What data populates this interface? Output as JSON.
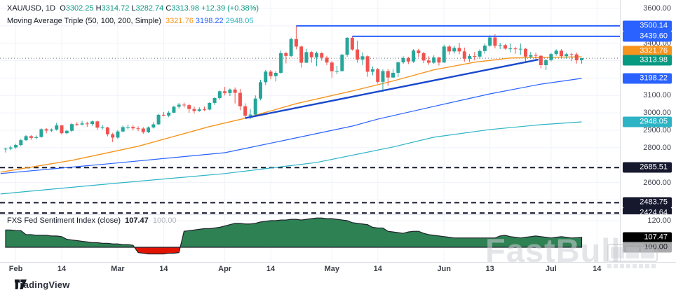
{
  "header": {
    "symbol": "XAU/USD, 1D",
    "ohlc": [
      {
        "l": "O",
        "v": "3302.25"
      },
      {
        "l": "H",
        "v": "3314.72"
      },
      {
        "l": "L",
        "v": "3282.74"
      },
      {
        "l": "C",
        "v": "3313.98"
      }
    ],
    "change": "+12.39 (+0.38%)",
    "ma_label": "Moving Average Triple (50, 100, 200, Simple)",
    "ma_values": {
      "sma50": "3321.76",
      "sma100": "3198.22",
      "sma200": "2948.05"
    }
  },
  "indicator": {
    "label": "FXS Fed Sentiment Index (close)",
    "value": "107.47",
    "baseline": "100.00"
  },
  "footer": {
    "brand": "TradingView"
  },
  "watermark": {
    "text": "FastBull"
  },
  "colors": {
    "up": "#26a69a",
    "down": "#ef5350",
    "up_text": "#089981",
    "sma50": "#f7941e",
    "sma100": "#2962ff",
    "sma200": "#2cb4c5",
    "ray": "#2962ff",
    "trendline": "#1848cc",
    "dashed_level": "#16182e",
    "last_price_line": "#6a6d78",
    "grid": "#f0f3fa",
    "senti_fill_up": "#2e8152",
    "senti_fill_down": "#e01400",
    "senti_stroke": "#1e222d",
    "badge_close": "#089981",
    "badge_black": "#000000",
    "badge_gray": "#aaaaaa",
    "badge_dark": "#16182e"
  },
  "price_axis": {
    "plain_labels": [
      {
        "text": "3600.00",
        "price": 3600
      },
      {
        "text": "3400.00",
        "price": 3400
      },
      {
        "text": "3100.00",
        "price": 3100
      },
      {
        "text": "3000.00",
        "price": 3000
      },
      {
        "text": "2900.00",
        "price": 2900
      },
      {
        "text": "2800.00",
        "price": 2800
      },
      {
        "text": "2600.00",
        "price": 2600
      }
    ],
    "badges": [
      {
        "text": "3500.14",
        "price": 3500.14,
        "color": "#2962ff",
        "fg": "#fff",
        "dy": 0
      },
      {
        "text": "3439.60",
        "price": 3439.6,
        "color": "#2962ff",
        "fg": "#fff",
        "dy": 0
      },
      {
        "text": "3321.76",
        "price": 3321.76,
        "color": "#f7941e",
        "fg": "#fff",
        "dy": -8
      },
      {
        "text": "3313.98",
        "price": 3313.98,
        "color": "#089981",
        "fg": "#fff",
        "dy": 3
      },
      {
        "text": "3198.22",
        "price": 3198.22,
        "color": "#2962ff",
        "fg": "#fff",
        "dy": 0
      },
      {
        "text": "2948.05",
        "price": 2948.05,
        "color": "#2cb4c5",
        "fg": "#fff",
        "dy": 0
      },
      {
        "text": "2685.51",
        "price": 2685.51,
        "color": "#16182e",
        "fg": "#fff",
        "dy": 0
      },
      {
        "text": "2483.75",
        "price": 2483.75,
        "color": "#16182e",
        "fg": "#fff",
        "dy": 0
      },
      {
        "text": "2424.64",
        "price": 2424.64,
        "color": "#16182e",
        "fg": "#fff",
        "dy": 0
      }
    ],
    "indicator_plain_labels": [
      {
        "text": "120.00",
        "value": 120
      }
    ],
    "indicator_badges": [
      {
        "text": "107.47",
        "value": 107.47,
        "color": "#000000",
        "fg": "#fff"
      },
      {
        "text": "100.00",
        "value": 100,
        "color": "#aaaaaa",
        "fg": "#131722"
      }
    ]
  },
  "time_axis": {
    "ticks": [
      {
        "label": "Feb",
        "day": 2
      },
      {
        "label": "14",
        "day": 11
      },
      {
        "label": "Mar",
        "day": 22
      },
      {
        "label": "14",
        "day": 31
      },
      {
        "label": "Apr",
        "day": 43
      },
      {
        "label": "14",
        "day": 52
      },
      {
        "label": "May",
        "day": 64
      },
      {
        "label": "14",
        "day": 73
      },
      {
        "label": "Jun",
        "day": 86
      },
      {
        "label": "13",
        "day": 95
      },
      {
        "label": "Jul",
        "day": 107
      },
      {
        "label": "14",
        "day": 116
      }
    ]
  },
  "chart_data": {
    "type": "candlestick",
    "title": "XAU/USD, 1D",
    "ylim": [
      2421,
      3612
    ],
    "grid": true,
    "price_gridlines": [
      2500,
      2600,
      2700,
      2800,
      2900,
      3000,
      3100,
      3200,
      3300,
      3400,
      3500,
      3600
    ],
    "last_price": 3313.98,
    "candles_ohlc": [
      [
        2790,
        2800,
        2772,
        2794
      ],
      [
        2794,
        2812,
        2784,
        2801
      ],
      [
        2801,
        2822,
        2794,
        2815
      ],
      [
        2815,
        2850,
        2808,
        2843
      ],
      [
        2843,
        2872,
        2838,
        2866
      ],
      [
        2866,
        2873,
        2845,
        2856
      ],
      [
        2856,
        2870,
        2848,
        2861
      ],
      [
        2861,
        2911,
        2857,
        2906
      ],
      [
        2906,
        2913,
        2882,
        2898
      ],
      [
        2898,
        2910,
        2890,
        2904
      ],
      [
        2904,
        2942,
        2898,
        2928
      ],
      [
        2928,
        2930,
        2875,
        2883
      ],
      [
        2883,
        2902,
        2878,
        2897
      ],
      [
        2897,
        2940,
        2890,
        2935
      ],
      [
        2935,
        2947,
        2925,
        2933
      ],
      [
        2933,
        2954,
        2928,
        2939
      ],
      [
        2939,
        2949,
        2920,
        2936
      ],
      [
        2936,
        2956,
        2926,
        2951
      ],
      [
        2951,
        2955,
        2903,
        2915
      ],
      [
        2915,
        2930,
        2905,
        2916
      ],
      [
        2916,
        2920,
        2865,
        2877
      ],
      [
        2877,
        2885,
        2832,
        2858
      ],
      [
        2858,
        2902,
        2850,
        2893
      ],
      [
        2893,
        2927,
        2888,
        2918
      ],
      [
        2918,
        2933,
        2905,
        2919
      ],
      [
        2919,
        2930,
        2899,
        2911
      ],
      [
        2911,
        2923,
        2895,
        2910
      ],
      [
        2910,
        2918,
        2880,
        2889
      ],
      [
        2889,
        2922,
        2884,
        2916
      ],
      [
        2916,
        2947,
        2910,
        2934
      ],
      [
        2934,
        2994,
        2930,
        2989
      ],
      [
        2989,
        3005,
        2980,
        2984
      ],
      [
        2984,
        3010,
        2975,
        3001
      ],
      [
        3001,
        3040,
        2998,
        3035
      ],
      [
        3035,
        3057,
        3025,
        3047
      ],
      [
        3047,
        3059,
        3030,
        3044
      ],
      [
        3044,
        3052,
        3000,
        3022
      ],
      [
        3022,
        3035,
        2997,
        3011
      ],
      [
        3011,
        3032,
        3006,
        3020
      ],
      [
        3020,
        3036,
        3010,
        3019
      ],
      [
        3019,
        3062,
        3015,
        3057
      ],
      [
        3057,
        3089,
        3046,
        3085
      ],
      [
        3085,
        3128,
        3076,
        3124
      ],
      [
        3124,
        3149,
        3100,
        3114
      ],
      [
        3114,
        3140,
        3097,
        3134
      ],
      [
        3134,
        3146,
        3054,
        3115
      ],
      [
        3115,
        3137,
        3015,
        3038
      ],
      [
        3038,
        3055,
        2970,
        2983
      ],
      [
        2983,
        3022,
        2964,
        2990
      ],
      [
        2990,
        3100,
        2980,
        3082
      ],
      [
        3082,
        3190,
        3072,
        3176
      ],
      [
        3176,
        3246,
        3160,
        3237
      ],
      [
        3237,
        3246,
        3193,
        3211
      ],
      [
        3211,
        3240,
        3180,
        3230
      ],
      [
        3230,
        3358,
        3225,
        3343
      ],
      [
        3343,
        3350,
        3284,
        3327
      ],
      [
        3327,
        3432,
        3320,
        3424
      ],
      [
        3424,
        3500,
        3365,
        3381
      ],
      [
        3381,
        3386,
        3260,
        3288
      ],
      [
        3288,
        3368,
        3287,
        3349
      ],
      [
        3349,
        3355,
        3288,
        3319
      ],
      [
        3319,
        3352,
        3268,
        3343
      ],
      [
        3343,
        3348,
        3300,
        3317
      ],
      [
        3317,
        3328,
        3274,
        3289
      ],
      [
        3289,
        3298,
        3202,
        3239
      ],
      [
        3239,
        3270,
        3222,
        3240
      ],
      [
        3240,
        3338,
        3237,
        3334
      ],
      [
        3334,
        3435,
        3322,
        3431
      ],
      [
        3431,
        3440,
        3357,
        3364
      ],
      [
        3364,
        3415,
        3288,
        3306
      ],
      [
        3306,
        3347,
        3275,
        3325
      ],
      [
        3325,
        3330,
        3207,
        3236
      ],
      [
        3236,
        3266,
        3216,
        3250
      ],
      [
        3250,
        3258,
        3168,
        3178
      ],
      [
        3178,
        3250,
        3120,
        3240
      ],
      [
        3240,
        3252,
        3155,
        3203
      ],
      [
        3203,
        3252,
        3200,
        3230
      ],
      [
        3230,
        3295,
        3205,
        3290
      ],
      [
        3290,
        3325,
        3282,
        3315
      ],
      [
        3315,
        3322,
        3280,
        3295
      ],
      [
        3295,
        3366,
        3287,
        3358
      ],
      [
        3358,
        3368,
        3320,
        3343
      ],
      [
        3343,
        3350,
        3285,
        3301
      ],
      [
        3301,
        3325,
        3276,
        3288
      ],
      [
        3288,
        3330,
        3282,
        3318
      ],
      [
        3318,
        3322,
        3272,
        3289
      ],
      [
        3289,
        3392,
        3288,
        3381
      ],
      [
        3381,
        3390,
        3335,
        3353
      ],
      [
        3353,
        3385,
        3340,
        3373
      ],
      [
        3373,
        3403,
        3337,
        3353
      ],
      [
        3353,
        3375,
        3294,
        3311
      ],
      [
        3311,
        3338,
        3293,
        3326
      ],
      [
        3326,
        3350,
        3302,
        3323
      ],
      [
        3323,
        3365,
        3310,
        3355
      ],
      [
        3355,
        3398,
        3340,
        3386
      ],
      [
        3386,
        3446,
        3380,
        3433
      ],
      [
        3433,
        3452,
        3370,
        3385
      ],
      [
        3385,
        3403,
        3366,
        3389
      ],
      [
        3389,
        3396,
        3363,
        3369
      ],
      [
        3369,
        3398,
        3348,
        3370
      ],
      [
        3370,
        3378,
        3340,
        3368
      ],
      [
        3368,
        3398,
        3333,
        3368
      ],
      [
        3368,
        3372,
        3295,
        3323
      ],
      [
        3323,
        3350,
        3312,
        3332
      ],
      [
        3332,
        3345,
        3305,
        3328
      ],
      [
        3328,
        3330,
        3255,
        3274
      ],
      [
        3274,
        3310,
        3246,
        3303
      ],
      [
        3303,
        3345,
        3296,
        3338
      ],
      [
        3338,
        3365,
        3328,
        3357
      ],
      [
        3357,
        3366,
        3311,
        3326
      ],
      [
        3326,
        3345,
        3312,
        3337
      ],
      [
        3337,
        3345,
        3296,
        3336
      ],
      [
        3336,
        3346,
        3283,
        3302
      ],
      [
        3302.25,
        3314.72,
        3282.74,
        3313.98
      ]
    ],
    "overlays": {
      "sma50": {
        "name": "SMA 50",
        "last": 3321.76,
        "points": [
          [
            -1,
            2659
          ],
          [
            13,
            2727
          ],
          [
            26,
            2808
          ],
          [
            40,
            2921
          ],
          [
            47,
            2969
          ],
          [
            57,
            3053
          ],
          [
            68,
            3126
          ],
          [
            76,
            3183
          ],
          [
            84,
            3247
          ],
          [
            92,
            3291
          ],
          [
            99,
            3315
          ],
          [
            113,
            3322
          ]
        ]
      },
      "sma100": {
        "name": "SMA 100",
        "last": 3198.22,
        "points": [
          [
            -1,
            2651
          ],
          [
            20,
            2707
          ],
          [
            43,
            2771
          ],
          [
            55,
            2844
          ],
          [
            68,
            2924
          ],
          [
            73,
            2964
          ],
          [
            84,
            3037
          ],
          [
            95,
            3109
          ],
          [
            105,
            3165
          ],
          [
            113,
            3198
          ]
        ]
      },
      "sma200": {
        "name": "SMA 200",
        "last": 2948.05,
        "points": [
          [
            -1,
            2534
          ],
          [
            21,
            2594
          ],
          [
            43,
            2651
          ],
          [
            61,
            2715
          ],
          [
            76,
            2804
          ],
          [
            84,
            2860
          ],
          [
            95,
            2904
          ],
          [
            105,
            2932
          ],
          [
            113,
            2948
          ]
        ]
      }
    },
    "drawings": {
      "horizontal_rays": [
        {
          "price": 3500.14,
          "from_day": 57
        },
        {
          "price": 3439.6,
          "from_day": 68
        }
      ],
      "trendline": {
        "from_day": 47,
        "from_price": 2970,
        "to_day": 104.5,
        "to_price": 3306
      },
      "dashed_levels": [
        2685.51,
        2483.75,
        2424.64
      ]
    },
    "sentiment": {
      "type": "area",
      "name": "FXS Fed Sentiment Index",
      "baseline": 100,
      "last": 107.47,
      "ylim_labels": [
        100,
        120
      ],
      "values": [
        113,
        113,
        112.5,
        112.5,
        109.5,
        109.5,
        109,
        109,
        109,
        108.5,
        108.5,
        108,
        106,
        105.5,
        105,
        104.5,
        104,
        103.5,
        103.5,
        103,
        103,
        102.5,
        102.5,
        102,
        102,
        101.5,
        96,
        95.5,
        95,
        95,
        95,
        95,
        95.5,
        95.5,
        96,
        112,
        112.5,
        113,
        113.5,
        114,
        114,
        114.5,
        115,
        116,
        117,
        118,
        118,
        117.5,
        117.5,
        118,
        119,
        119.5,
        120,
        120,
        120.5,
        120.5,
        121,
        121,
        120.5,
        121,
        121.5,
        122,
        122,
        121.5,
        121.5,
        121,
        120.5,
        120,
        118.5,
        118,
        117.5,
        117,
        115,
        114.5,
        114.5,
        112,
        111.5,
        111,
        110.5,
        111.5,
        112,
        112,
        110.5,
        109.5,
        109,
        108.5,
        108,
        107.5,
        107,
        107,
        107,
        107,
        107,
        107,
        107,
        107,
        107,
        108.5,
        109,
        108,
        107.5,
        107,
        107.5,
        108,
        108.5,
        108,
        107.5,
        107,
        107.5,
        108,
        107.5,
        107,
        107.2,
        107.47
      ]
    }
  }
}
